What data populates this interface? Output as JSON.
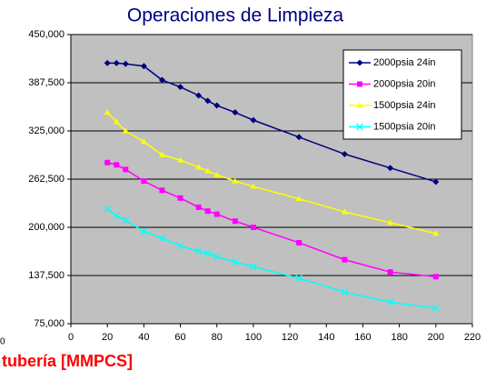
{
  "chart_data": {
    "type": "line",
    "title": "Operaciones de Limpieza",
    "x_label": "tubería [MMPCS]",
    "annotation": "0",
    "x": [
      20,
      25,
      30,
      40,
      50,
      60,
      70,
      75,
      80,
      90,
      100,
      125,
      150,
      175,
      200
    ],
    "series": [
      {
        "name": "2000psia 24in",
        "color": "#000080",
        "marker": "diamond",
        "values": [
          413000,
          413000,
          412000,
          409000,
          391000,
          382000,
          371000,
          364000,
          358000,
          349000,
          339000,
          317000,
          295000,
          277000,
          259000
        ]
      },
      {
        "name": "2000psia 20in",
        "color": "#ff00ff",
        "marker": "square",
        "values": [
          284000,
          281000,
          275000,
          260000,
          248000,
          238000,
          226000,
          221000,
          217000,
          208000,
          200000,
          180000,
          158000,
          142000,
          136000
        ]
      },
      {
        "name": "1500psia 24in",
        "color": "#ffff00",
        "marker": "triangle",
        "values": [
          349000,
          337000,
          325000,
          311000,
          294000,
          287000,
          278000,
          273000,
          268000,
          260000,
          253000,
          237000,
          220000,
          206000,
          192000
        ]
      },
      {
        "name": "1500psia 20in",
        "color": "#00ffff",
        "marker": "x",
        "values": [
          224000,
          215000,
          209000,
          195000,
          186000,
          176000,
          169000,
          166000,
          162000,
          155000,
          149000,
          134000,
          116000,
          103000,
          95000
        ]
      }
    ],
    "xlim": [
      0,
      220
    ],
    "xticks": [
      0,
      20,
      40,
      60,
      80,
      100,
      120,
      140,
      160,
      180,
      200,
      220
    ],
    "ylim": [
      75000,
      450000
    ],
    "yticks": [
      {
        "value": 75000,
        "label": "75,000"
      },
      {
        "value": 137500,
        "label": "137,500"
      },
      {
        "value": 200000,
        "label": "200,000"
      },
      {
        "value": 262500,
        "label": "262,500"
      },
      {
        "value": 325000,
        "label": "325,000"
      },
      {
        "value": 387500,
        "label": "387,500"
      },
      {
        "value": 450000,
        "label": "450,000"
      }
    ],
    "grid": true,
    "legend": "upper right"
  }
}
